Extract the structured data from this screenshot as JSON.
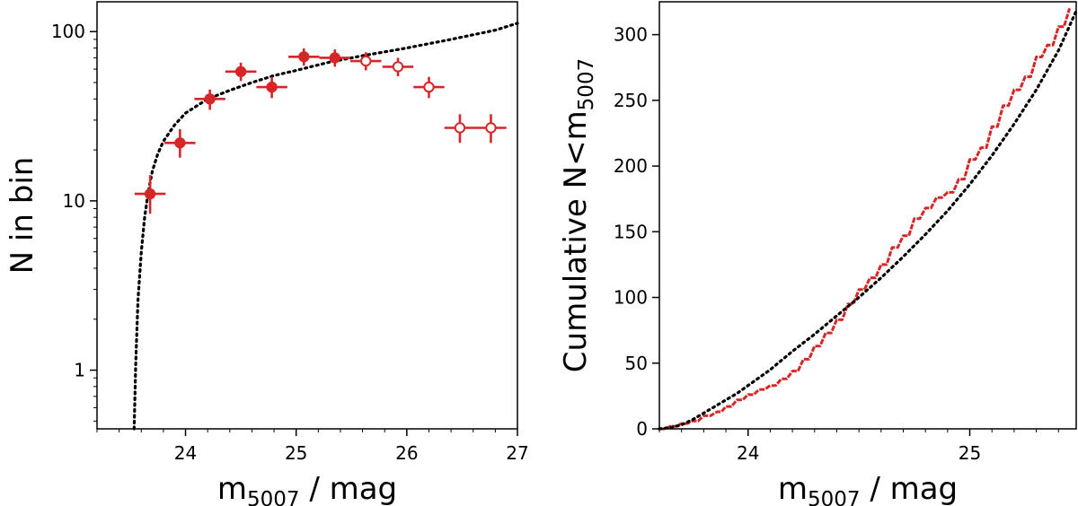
{
  "chart_data": [
    {
      "type": "scatter",
      "xlabel_main": "m",
      "xlabel_sub": "5007",
      "xlabel_tail": " / mag",
      "ylabel": "N in bin",
      "yscale": "log",
      "xlim": [
        23.2,
        27.0
      ],
      "ylim": [
        0.45,
        150
      ],
      "xticks": [
        24,
        25,
        26,
        27
      ],
      "xtick_labels": [
        "24",
        "25",
        "26",
        "27"
      ],
      "yticks": [
        1,
        10,
        100
      ],
      "ytick_labels": [
        "1",
        "10",
        "100"
      ],
      "grid": false,
      "marker_color": "#d62728",
      "series": [
        {
          "marker": "filled",
          "points": [
            {
              "x": 23.68,
              "y": 11,
              "xerr": 0.14,
              "yerr": [
                2.6,
                3.2
              ]
            },
            {
              "x": 23.95,
              "y": 22,
              "xerr": 0.14,
              "yerr": [
                4.0,
                4.5
              ]
            },
            {
              "x": 24.22,
              "y": 40,
              "xerr": 0.14,
              "yerr": [
                5.5,
                5.5
              ]
            },
            {
              "x": 24.5,
              "y": 58,
              "xerr": 0.14,
              "yerr": [
                7.0,
                7.5
              ]
            },
            {
              "x": 24.78,
              "y": 47,
              "xerr": 0.14,
              "yerr": [
                6.5,
                7.0
              ]
            },
            {
              "x": 25.07,
              "y": 71,
              "xerr": 0.14,
              "yerr": [
                8.0,
                8.5
              ]
            },
            {
              "x": 25.35,
              "y": 70,
              "xerr": 0.14,
              "yerr": [
                8.0,
                8.5
              ]
            }
          ]
        },
        {
          "marker": "open",
          "points": [
            {
              "x": 25.63,
              "y": 67,
              "xerr": 0.14,
              "yerr": [
                8.0,
                8.5
              ]
            },
            {
              "x": 25.92,
              "y": 62,
              "xerr": 0.14,
              "yerr": [
                7.5,
                8.0
              ]
            },
            {
              "x": 26.2,
              "y": 47,
              "xerr": 0.14,
              "yerr": [
                6.5,
                7.0
              ]
            },
            {
              "x": 26.48,
              "y": 27,
              "xerr": 0.14,
              "yerr": [
                5.0,
                5.5
              ]
            },
            {
              "x": 26.76,
              "y": 27,
              "xerr": 0.14,
              "yerr": [
                5.0,
                5.5
              ]
            }
          ]
        }
      ],
      "model": {
        "style": "dotted",
        "color": "#000000",
        "x": [
          23.535,
          23.54,
          23.55,
          23.57,
          23.6,
          23.63,
          23.66,
          23.7,
          23.75,
          23.8,
          23.9,
          24.0,
          24.2,
          24.4,
          24.6,
          24.8,
          25.0,
          25.3,
          25.6,
          26.0,
          26.4,
          26.8,
          27.0
        ],
        "y": [
          0.45,
          0.6,
          1.1,
          2.6,
          5.0,
          8.0,
          11.0,
          15.0,
          19.0,
          22.5,
          28.0,
          33.0,
          40.0,
          45.0,
          50.0,
          55.0,
          59.0,
          66.0,
          72.0,
          80.0,
          90.0,
          102.0,
          112.0
        ]
      }
    },
    {
      "type": "line",
      "xlabel_main": "m",
      "xlabel_sub": "5007",
      "xlabel_tail": " / mag",
      "ylabel_main": "Cumulative N<m",
      "ylabel_sub": "5007",
      "xlim": [
        23.6,
        25.48
      ],
      "ylim": [
        0,
        325
      ],
      "xticks": [
        24,
        25
      ],
      "xtick_labels": [
        "24",
        "25"
      ],
      "yticks": [
        0,
        50,
        100,
        150,
        200,
        250,
        300
      ],
      "ytick_labels": [
        "0",
        "50",
        "100",
        "150",
        "200",
        "250",
        "300"
      ],
      "grid": false,
      "series": [
        {
          "style": "data-steps",
          "color": "#d62728",
          "x": [
            23.6,
            23.65,
            23.7,
            23.75,
            23.8,
            23.86,
            23.9,
            23.95,
            24.0,
            24.05,
            24.1,
            24.15,
            24.2,
            24.25,
            24.3,
            24.35,
            24.4,
            24.45,
            24.5,
            24.55,
            24.6,
            24.65,
            24.7,
            24.75,
            24.8,
            24.85,
            24.9,
            24.95,
            25.0,
            25.05,
            25.1,
            25.15,
            25.2,
            25.25,
            25.3,
            25.35,
            25.4,
            25.45
          ],
          "y": [
            0,
            2,
            4,
            6,
            10,
            13,
            17,
            22,
            26,
            30,
            33,
            38,
            44,
            53,
            63,
            73,
            83,
            95,
            106,
            115,
            125,
            138,
            147,
            160,
            168,
            176,
            180,
            190,
            205,
            214,
            230,
            246,
            258,
            268,
            283,
            292,
            306,
            320
          ]
        },
        {
          "style": "model-dotted",
          "color": "#000000",
          "x": [
            23.6,
            23.65,
            23.7,
            23.75,
            23.8,
            23.85,
            23.9,
            23.95,
            24.0,
            24.05,
            24.1,
            24.15,
            24.2,
            24.3,
            24.4,
            24.5,
            24.6,
            24.7,
            24.8,
            24.9,
            25.0,
            25.1,
            25.2,
            25.3,
            25.4,
            25.48
          ],
          "y": [
            0,
            1,
            3,
            7,
            12,
            17,
            22,
            27,
            33,
            39,
            45,
            52,
            59,
            72,
            86,
            100,
            115,
            131,
            148,
            166,
            186,
            208,
            232,
            258,
            288,
            318
          ]
        }
      ]
    }
  ]
}
